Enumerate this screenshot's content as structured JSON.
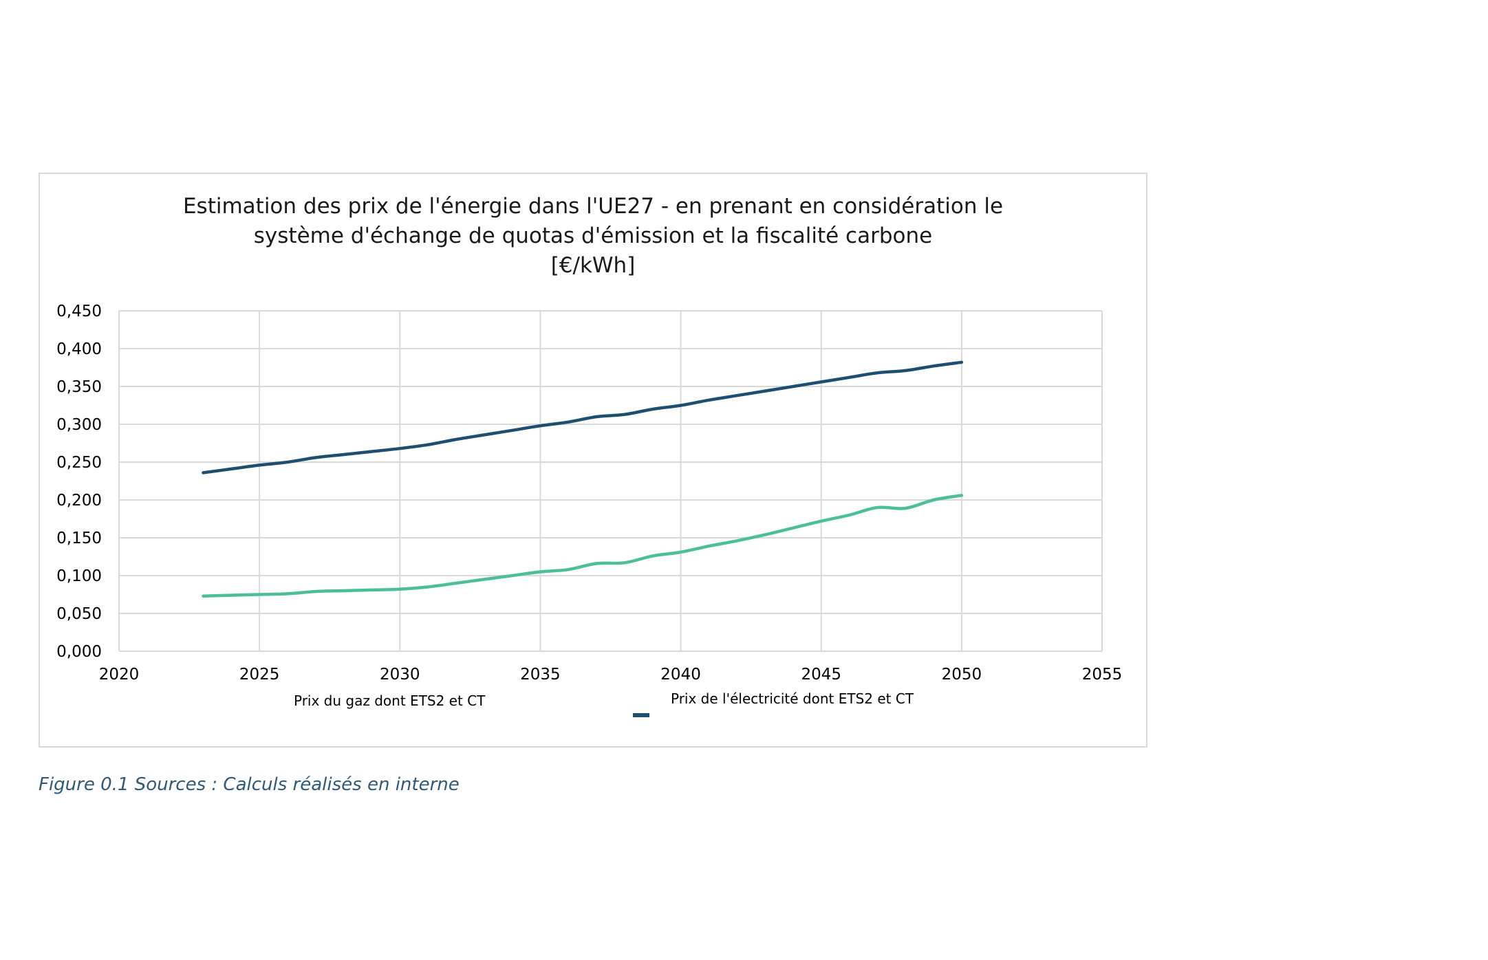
{
  "chart_data": {
    "type": "line",
    "title_lines": [
      "Estimation des prix de l'énergie dans l'UE27 - en prenant en considération le",
      "système d'échange de quotas d'émission et la fiscalité carbone",
      "[€/kWh]"
    ],
    "xlabel": "",
    "ylabel": "",
    "xlim": [
      2020,
      2055
    ],
    "ylim": [
      0,
      0.45
    ],
    "x_ticks": [
      "2020",
      "2025",
      "2030",
      "2035",
      "2040",
      "2045",
      "2050",
      "2055"
    ],
    "y_ticks": [
      "0,000",
      "0,050",
      "0,100",
      "0,150",
      "0,200",
      "0,250",
      "0,300",
      "0,350",
      "0,400",
      "0,450"
    ],
    "grid": true,
    "legend_position": "bottom",
    "x": [
      2023,
      2024,
      2025,
      2026,
      2027,
      2028,
      2029,
      2030,
      2031,
      2032,
      2033,
      2034,
      2035,
      2036,
      2037,
      2038,
      2039,
      2040,
      2041,
      2042,
      2043,
      2044,
      2045,
      2046,
      2047,
      2048,
      2049,
      2050
    ],
    "series": [
      {
        "name": "Prix du gaz dont ETS2 et CT",
        "color": "#4cbf98",
        "values": [
          0.073,
          0.074,
          0.075,
          0.076,
          0.079,
          0.08,
          0.081,
          0.082,
          0.085,
          0.09,
          0.095,
          0.1,
          0.105,
          0.108,
          0.116,
          0.117,
          0.126,
          0.131,
          0.139,
          0.146,
          0.154,
          0.163,
          0.172,
          0.18,
          0.19,
          0.189,
          0.2,
          0.206
        ]
      },
      {
        "name": "Prix de l'électricité dont ETS2 et CT",
        "color": "#1f4e70",
        "values": [
          0.236,
          0.241,
          0.246,
          0.25,
          0.256,
          0.26,
          0.264,
          0.268,
          0.273,
          0.28,
          0.286,
          0.292,
          0.298,
          0.303,
          0.31,
          0.313,
          0.32,
          0.325,
          0.332,
          0.338,
          0.344,
          0.35,
          0.356,
          0.362,
          0.368,
          0.371,
          0.377,
          0.382
        ]
      }
    ]
  },
  "caption": "Figure 0.1 Sources : Calculs réalisés en interne",
  "colors": {
    "gas": "#4cbf98",
    "electricity": "#1f4e70",
    "grid": "#d9d9d9",
    "caption": "#2e5a7a"
  }
}
